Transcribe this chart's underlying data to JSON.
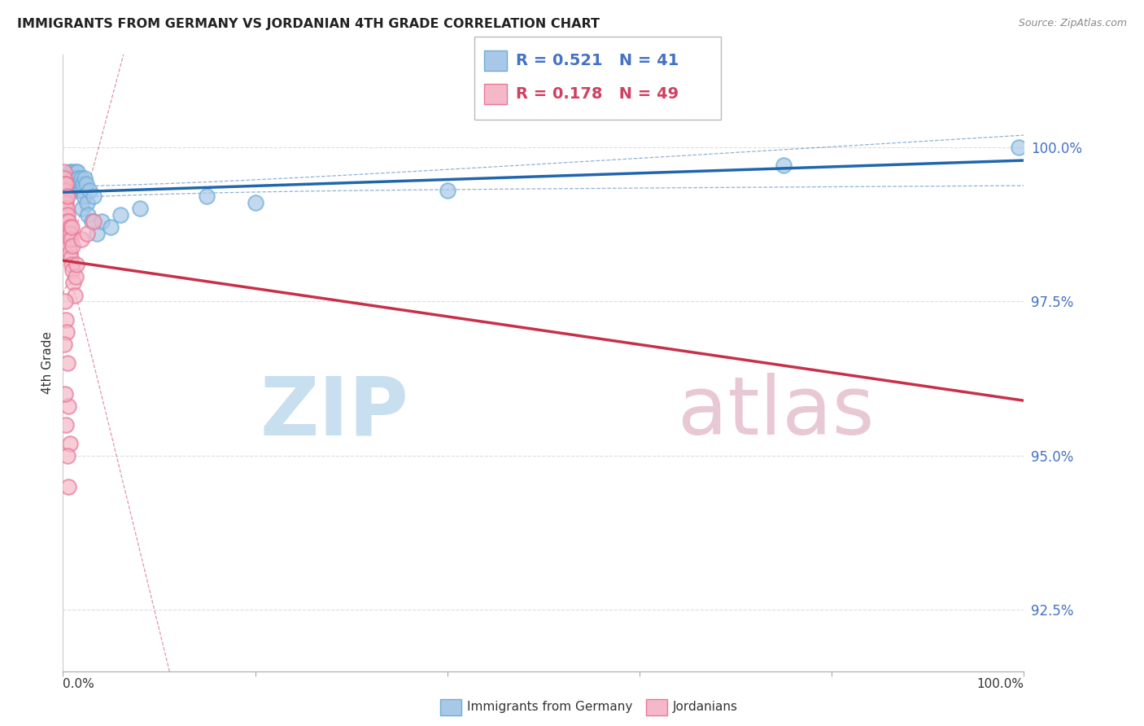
{
  "title": "IMMIGRANTS FROM GERMANY VS JORDANIAN 4TH GRADE CORRELATION CHART",
  "source": "Source: ZipAtlas.com",
  "ylabel": "4th Grade",
  "ylabel_ticks": [
    92.5,
    95.0,
    97.5,
    100.0
  ],
  "ylabel_tick_labels": [
    "92.5%",
    "95.0%",
    "97.5%",
    "100.0%"
  ],
  "xlim": [
    0.0,
    100.0
  ],
  "ylim": [
    91.5,
    101.5
  ],
  "legend_label_blue": "Immigrants from Germany",
  "legend_label_pink": "Jordanians",
  "R_blue": 0.521,
  "N_blue": 41,
  "R_pink": 0.178,
  "N_pink": 49,
  "blue_color": "#a8c8e8",
  "blue_edge_color": "#6baed6",
  "pink_color": "#f4b8c8",
  "pink_edge_color": "#e87898",
  "blue_line_color": "#2166ac",
  "pink_line_color": "#c8304a",
  "blue_text_color": "#4472c4",
  "pink_text_color": "#d04060",
  "watermark_zip_color": "#c8dff0",
  "watermark_atlas_color": "#e8c8d4",
  "blue_scatter_x": [
    0.2,
    0.3,
    0.4,
    0.5,
    0.6,
    0.7,
    0.8,
    0.9,
    1.0,
    1.0,
    1.1,
    1.2,
    1.3,
    1.4,
    1.5,
    1.5,
    1.6,
    1.7,
    1.8,
    1.9,
    2.0,
    2.0,
    2.1,
    2.2,
    2.3,
    2.4,
    2.5,
    2.6,
    2.8,
    3.0,
    3.2,
    3.5,
    4.0,
    5.0,
    6.0,
    8.0,
    15.0,
    20.0,
    40.0,
    75.0,
    99.5
  ],
  "blue_scatter_y": [
    99.4,
    99.5,
    99.3,
    99.5,
    99.4,
    99.6,
    99.5,
    99.4,
    99.6,
    99.3,
    99.5,
    99.4,
    99.6,
    99.5,
    99.4,
    99.6,
    99.5,
    99.4,
    99.3,
    99.5,
    99.3,
    99.0,
    99.4,
    99.2,
    99.5,
    99.4,
    99.1,
    98.9,
    99.3,
    98.8,
    99.2,
    98.6,
    98.8,
    98.7,
    98.9,
    99.0,
    99.2,
    99.1,
    99.3,
    99.7,
    100.0
  ],
  "pink_scatter_x": [
    0.05,
    0.1,
    0.1,
    0.15,
    0.15,
    0.2,
    0.2,
    0.25,
    0.25,
    0.3,
    0.3,
    0.3,
    0.35,
    0.4,
    0.4,
    0.45,
    0.5,
    0.5,
    0.55,
    0.6,
    0.6,
    0.65,
    0.7,
    0.7,
    0.75,
    0.8,
    0.85,
    0.9,
    0.9,
    1.0,
    1.0,
    1.1,
    1.2,
    1.3,
    1.4,
    0.2,
    0.3,
    0.4,
    0.5,
    0.6,
    0.7,
    0.15,
    0.25,
    0.35,
    0.45,
    0.55,
    1.9,
    2.5,
    3.2
  ],
  "pink_scatter_y": [
    99.5,
    99.6,
    99.3,
    99.5,
    99.2,
    99.4,
    99.1,
    99.3,
    99.0,
    99.2,
    98.9,
    99.4,
    99.1,
    99.0,
    98.7,
    98.9,
    98.8,
    99.2,
    98.6,
    98.5,
    98.8,
    98.4,
    98.7,
    98.3,
    98.6,
    98.2,
    98.5,
    98.1,
    98.7,
    98.0,
    98.4,
    97.8,
    97.6,
    97.9,
    98.1,
    97.5,
    97.2,
    97.0,
    96.5,
    95.8,
    95.2,
    96.8,
    96.0,
    95.5,
    95.0,
    94.5,
    98.5,
    98.6,
    98.8
  ]
}
